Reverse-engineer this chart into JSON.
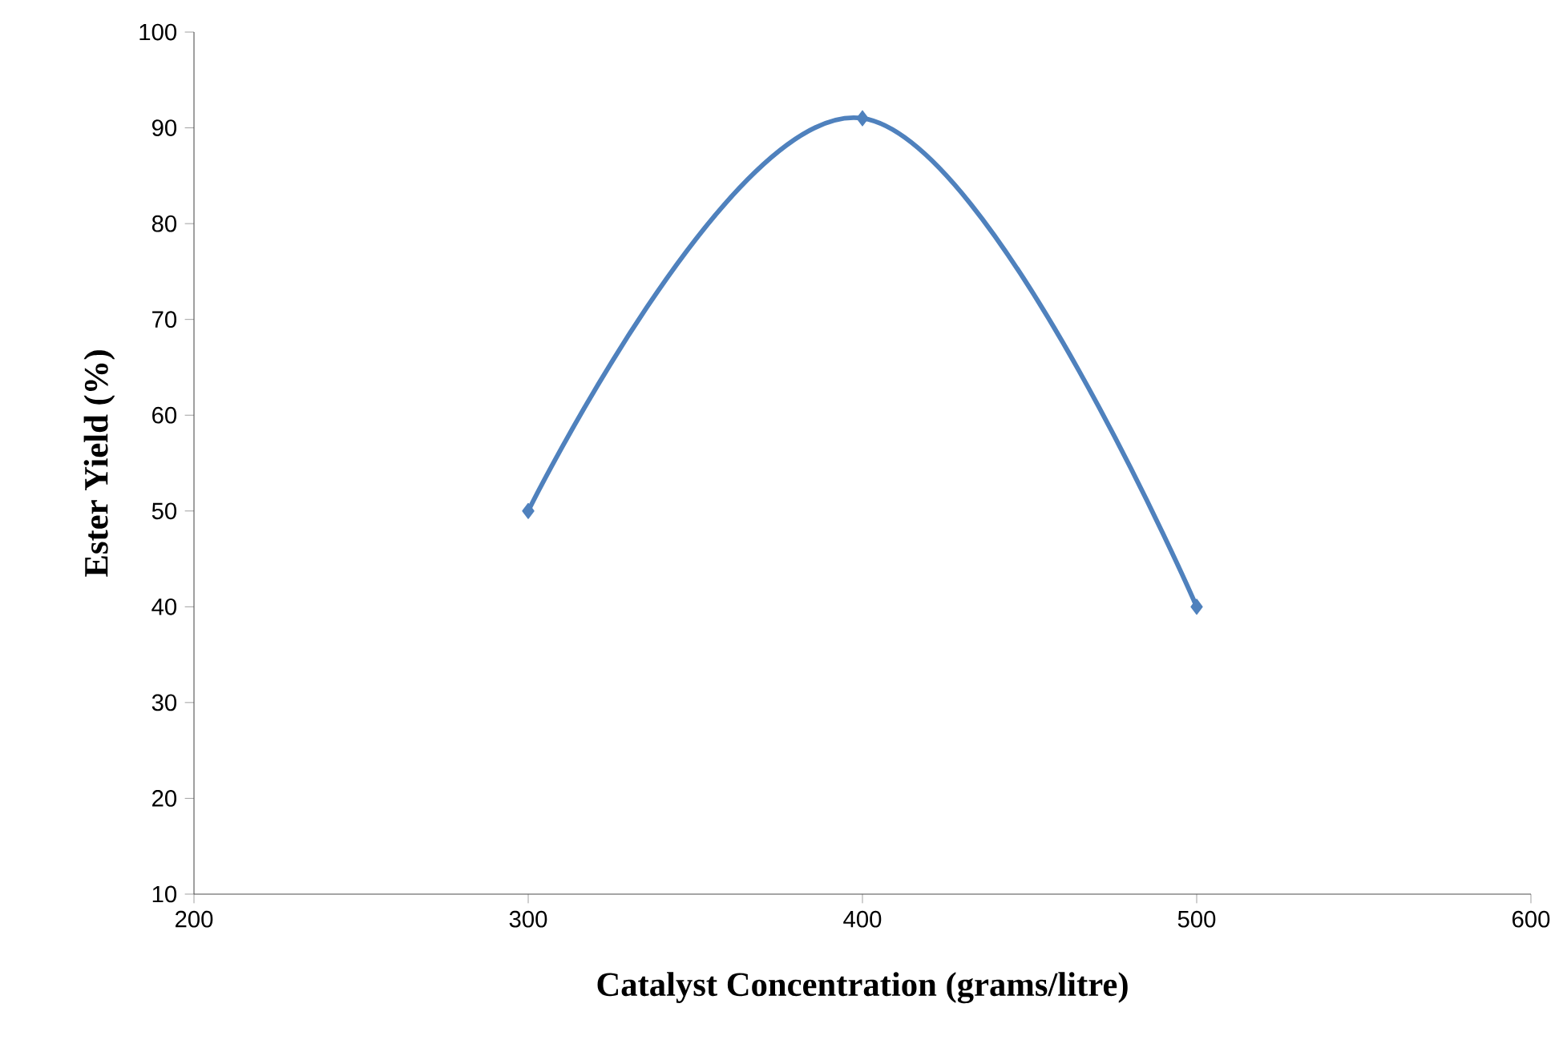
{
  "chart_data": {
    "type": "line",
    "xlabel": "Catalyst Concentration (grams/litre)",
    "ylabel": "Ester Yield (%)",
    "x": [
      300,
      400,
      500
    ],
    "series": [
      {
        "color": "#4f81bd",
        "values": [
          50,
          91,
          40
        ]
      }
    ],
    "xlim": [
      200,
      600
    ],
    "xticks": [
      200,
      300,
      400,
      500,
      600
    ],
    "ylim": [
      10,
      100
    ],
    "yticks": [
      10,
      20,
      30,
      40,
      50,
      60,
      70,
      80,
      90,
      100
    ],
    "marker": "diamond"
  }
}
